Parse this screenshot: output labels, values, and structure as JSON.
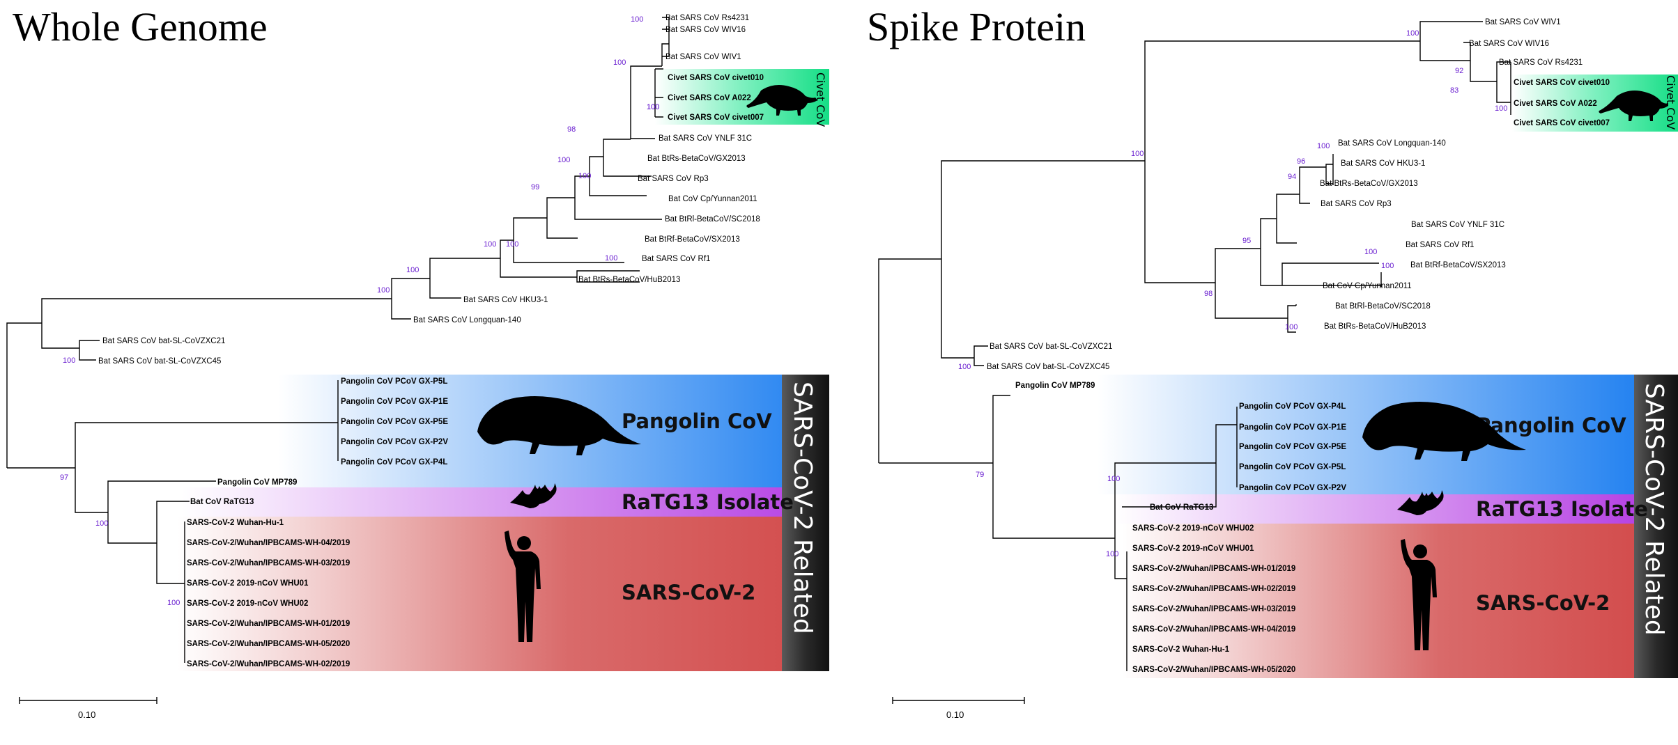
{
  "panels": [
    {
      "title": "Whole Genome",
      "scale_label": "0.10",
      "groups": {
        "pangolin": "Pangolin CoV",
        "ratg13": "RaTG13 Isolate",
        "sars2": "SARS-CoV-2",
        "related": "SARS-CoV-2 Related",
        "civet": "Civet CoV"
      },
      "leaves": [
        {
          "label": "Bat SARS CoV Rs4231",
          "bold": false
        },
        {
          "label": "Bat SARS CoV WIV16",
          "bold": false
        },
        {
          "label": "Bat SARS CoV WIV1",
          "bold": false
        },
        {
          "label": "Civet SARS CoV civet010",
          "bold": true
        },
        {
          "label": "Civet SARS CoV A022",
          "bold": true
        },
        {
          "label": "Civet SARS CoV civet007",
          "bold": true
        },
        {
          "label": "Bat SARS CoV YNLF 31C",
          "bold": false
        },
        {
          "label": "Bat BtRs-BetaCoV/GX2013",
          "bold": false
        },
        {
          "label": "Bat SARS CoV Rp3",
          "bold": false
        },
        {
          "label": "Bat CoV Cp/Yunnan2011",
          "bold": false
        },
        {
          "label": "Bat BtRl-BetaCoV/SC2018",
          "bold": false
        },
        {
          "label": "Bat BtRf-BetaCoV/SX2013",
          "bold": false
        },
        {
          "label": "Bat SARS CoV Rf1",
          "bold": false
        },
        {
          "label": "Bat BtRs-BetaCoV/HuB2013",
          "bold": false
        },
        {
          "label": "Bat SARS CoV HKU3-1",
          "bold": false
        },
        {
          "label": "Bat SARS CoV Longquan-140",
          "bold": false
        },
        {
          "label": "Bat SARS CoV bat-SL-CoVZXC21",
          "bold": false
        },
        {
          "label": "Bat SARS CoV bat-SL-CoVZXC45",
          "bold": false
        },
        {
          "label": "Pangolin CoV PCoV GX-P5L",
          "bold": true
        },
        {
          "label": "Pangolin CoV PCoV GX-P1E",
          "bold": true
        },
        {
          "label": "Pangolin CoV PCoV GX-P5E",
          "bold": true
        },
        {
          "label": "Pangolin CoV PCoV GX-P2V",
          "bold": true
        },
        {
          "label": "Pangolin CoV PCoV GX-P4L",
          "bold": true
        },
        {
          "label": "Pangolin CoV MP789",
          "bold": true
        },
        {
          "label": "Bat CoV RaTG13",
          "bold": true
        },
        {
          "label": "SARS-CoV-2 Wuhan-Hu-1",
          "bold": true
        },
        {
          "label": "SARS-CoV-2/Wuhan/IPBCAMS-WH-04/2019",
          "bold": true
        },
        {
          "label": "SARS-CoV-2/Wuhan/IPBCAMS-WH-03/2019",
          "bold": true
        },
        {
          "label": "SARS-CoV-2 2019-nCoV WHU01",
          "bold": true
        },
        {
          "label": "SARS-CoV-2 2019-nCoV WHU02",
          "bold": true
        },
        {
          "label": "SARS-CoV-2/Wuhan/IPBCAMS-WH-01/2019",
          "bold": true
        },
        {
          "label": "SARS-CoV-2/Wuhan/IPBCAMS-WH-05/2020",
          "bold": true
        },
        {
          "label": "SARS-CoV-2/Wuhan/IPBCAMS-WH-02/2019",
          "bold": true
        }
      ],
      "bootstrap": [
        "100",
        "100",
        "100",
        "100",
        "98",
        "100",
        "100",
        "99",
        "100",
        "100",
        "100",
        "100",
        "100",
        "100",
        "97",
        "100",
        "100"
      ]
    },
    {
      "title": "Spike Protein",
      "scale_label": "0.10",
      "groups": {
        "pangolin": "Pangolin CoV",
        "ratg13": "RaTG13 Isolate",
        "sars2": "SARS-CoV-2",
        "related": "SARS-CoV-2 Related",
        "civet": "Civet CoV"
      },
      "leaves": [
        {
          "label": "Bat SARS CoV WIV1",
          "bold": false
        },
        {
          "label": "Bat SARS CoV WIV16",
          "bold": false
        },
        {
          "label": "Bat SARS CoV Rs4231",
          "bold": false
        },
        {
          "label": "Civet SARS CoV civet010",
          "bold": true
        },
        {
          "label": "Civet SARS CoV A022",
          "bold": true
        },
        {
          "label": "Civet SARS CoV civet007",
          "bold": true
        },
        {
          "label": "Bat SARS CoV Longquan-140",
          "bold": false
        },
        {
          "label": "Bat SARS CoV HKU3-1",
          "bold": false
        },
        {
          "label": "Bat BtRs-BetaCoV/GX2013",
          "bold": false
        },
        {
          "label": "Bat SARS CoV Rp3",
          "bold": false
        },
        {
          "label": "Bat SARS CoV YNLF 31C",
          "bold": false
        },
        {
          "label": "Bat SARS CoV Rf1",
          "bold": false
        },
        {
          "label": "Bat BtRf-BetaCoV/SX2013",
          "bold": false
        },
        {
          "label": "Bat CoV Cp/Yunnan2011",
          "bold": false
        },
        {
          "label": "Bat BtRl-BetaCoV/SC2018",
          "bold": false
        },
        {
          "label": "Bat BtRs-BetaCoV/HuB2013",
          "bold": false
        },
        {
          "label": "Bat SARS CoV bat-SL-CoVZXC21",
          "bold": false
        },
        {
          "label": "Bat SARS CoV bat-SL-CoVZXC45",
          "bold": false
        },
        {
          "label": "Pangolin CoV MP789",
          "bold": true
        },
        {
          "label": "Pangolin CoV PCoV GX-P4L",
          "bold": true
        },
        {
          "label": "Pangolin CoV PCoV GX-P1E",
          "bold": true
        },
        {
          "label": "Pangolin CoV PCoV GX-P5E",
          "bold": true
        },
        {
          "label": "Pangolin CoV PCoV GX-P5L",
          "bold": true
        },
        {
          "label": "Pangolin CoV PCoV GX-P2V",
          "bold": true
        },
        {
          "label": "Bat CoV RaTG13",
          "bold": true
        },
        {
          "label": "SARS-CoV-2 2019-nCoV WHU02",
          "bold": true
        },
        {
          "label": "SARS-CoV-2 2019-nCoV WHU01",
          "bold": true
        },
        {
          "label": "SARS-CoV-2/Wuhan/IPBCAMS-WH-01/2019",
          "bold": true
        },
        {
          "label": "SARS-CoV-2/Wuhan/IPBCAMS-WH-02/2019",
          "bold": true
        },
        {
          "label": "SARS-CoV-2/Wuhan/IPBCAMS-WH-03/2019",
          "bold": true
        },
        {
          "label": "SARS-CoV-2/Wuhan/IPBCAMS-WH-04/2019",
          "bold": true
        },
        {
          "label": "SARS-CoV-2 Wuhan-Hu-1",
          "bold": true
        },
        {
          "label": "SARS-CoV-2/Wuhan/IPBCAMS-WH-05/2020",
          "bold": true
        }
      ],
      "bootstrap": [
        "100",
        "92",
        "83",
        "100",
        "100",
        "96",
        "94",
        "100",
        "100",
        "95",
        "100",
        "98",
        "100",
        "100",
        "79",
        "100",
        "100"
      ]
    }
  ],
  "colors": {
    "pangolin": "#1e7ff0",
    "ratg13": "#b84ae6",
    "sars2": "#d24f4f",
    "civet": "#22e08e",
    "related": "#2a2a2a",
    "bootstrap": "#6a1fd0"
  }
}
